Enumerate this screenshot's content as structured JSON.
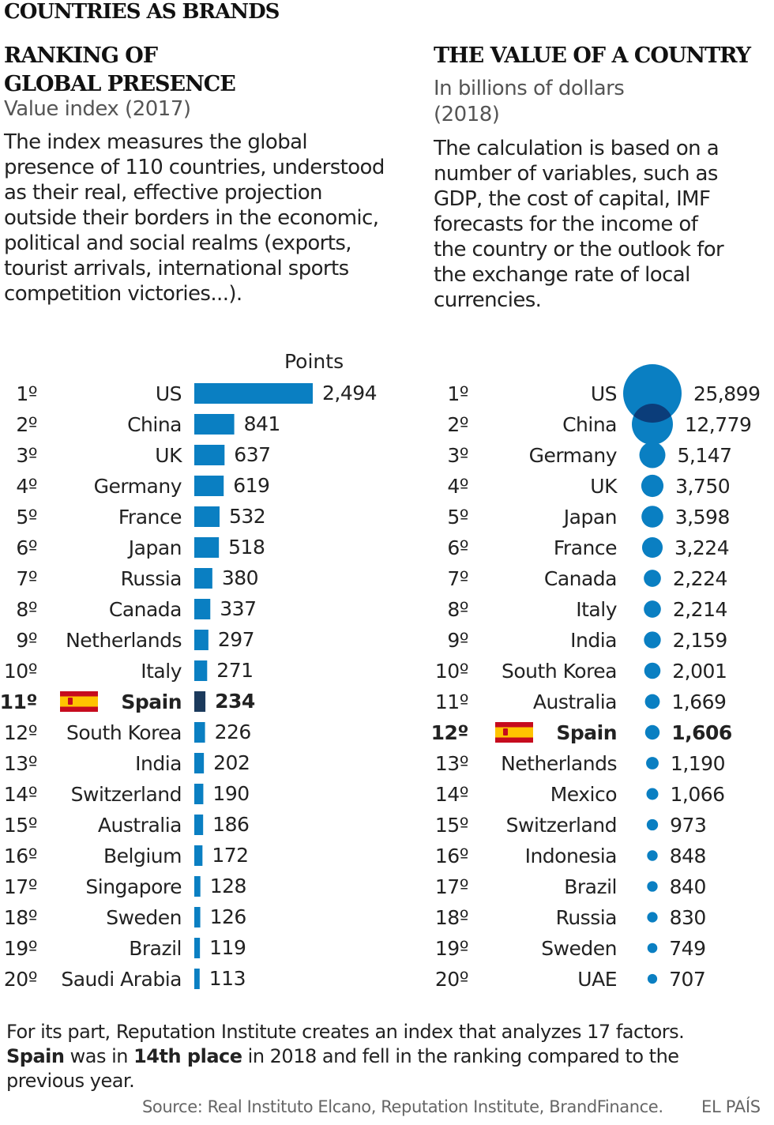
{
  "header": {
    "title": "COUNTRIES AS BRANDS"
  },
  "left": {
    "title_lines": [
      "RANKING OF",
      "GLOBAL PRESENCE"
    ],
    "subtitle": "Value index (2017)",
    "description_lines": [
      "The index measures the global",
      "presence of 110 countries, understood",
      "as their real, effective projection",
      "outside their borders in the economic,",
      "political and social realms (exports,",
      "tourist arrivals, international sports",
      "competition victories...)."
    ],
    "points_label": "Points"
  },
  "right": {
    "title": "THE VALUE OF A COUNTRY",
    "subtitle_lines": [
      "In billions of dollars",
      "(2018)"
    ],
    "description_lines": [
      "The calculation is based on a",
      "number of variables, such as",
      "GDP, the cost of capital, IMF",
      "forecasts for the income of",
      "the country or the outlook for",
      "the exchange rate of local",
      "currencies."
    ]
  },
  "footer": {
    "note_line1": "For its part, Reputation Institute creates an index that analyzes 17 factors.",
    "note_line2_bold1": "Spain",
    "note_line2_text1": " was in ",
    "note_line2_bold2": "14th place",
    "note_line2_text2": " in 2018 and fell in the ranking compared to the",
    "note_line3": "previous year.",
    "source": "Source: Real Instituto Elcano, Reputation Institute, BrandFinance.",
    "brand": "EL PAÍS"
  },
  "colors": {
    "bar": "#0a7fc2",
    "highlight": "#1b3a5c",
    "bubble": "#0a7fc2",
    "bubble_overlap": "#0b3d7a",
    "flag_red": "#c60b1e",
    "flag_yellow": "#ffc400"
  },
  "chart_data": [
    {
      "type": "bar",
      "orientation": "horizontal",
      "title": "RANKING OF GLOBAL PRESENCE",
      "subtitle": "Value index (2017)",
      "value_label": "Points",
      "ranks": [
        "1º",
        "2º",
        "3º",
        "4º",
        "5º",
        "6º",
        "7º",
        "8º",
        "9º",
        "10º",
        "11º",
        "12º",
        "13º",
        "14º",
        "15º",
        "16º",
        "17º",
        "18º",
        "19º",
        "20º"
      ],
      "categories": [
        "US",
        "China",
        "UK",
        "Germany",
        "France",
        "Japan",
        "Russia",
        "Canada",
        "Netherlands",
        "Italy",
        "Spain",
        "South Korea",
        "India",
        "Switzerland",
        "Australia",
        "Belgium",
        "Singapore",
        "Sweden",
        "Brazil",
        "Saudi Arabia"
      ],
      "values": [
        2494,
        841,
        637,
        619,
        532,
        518,
        380,
        337,
        297,
        271,
        234,
        226,
        202,
        190,
        186,
        172,
        128,
        126,
        119,
        113
      ],
      "value_labels": [
        "2,494",
        "841",
        "637",
        "619",
        "532",
        "518",
        "380",
        "337",
        "297",
        "271",
        "234",
        "226",
        "202",
        "190",
        "186",
        "172",
        "128",
        "126",
        "119",
        "113"
      ],
      "highlight": "Spain"
    },
    {
      "type": "scatter",
      "encoding": "bubble-area",
      "title": "THE VALUE OF A COUNTRY",
      "subtitle": "In billions of dollars (2018)",
      "ranks": [
        "1º",
        "2º",
        "3º",
        "4º",
        "5º",
        "6º",
        "7º",
        "8º",
        "9º",
        "10º",
        "11º",
        "12º",
        "13º",
        "14º",
        "15º",
        "16º",
        "17º",
        "18º",
        "19º",
        "20º"
      ],
      "categories": [
        "US",
        "China",
        "Germany",
        "UK",
        "Japan",
        "France",
        "Canada",
        "Italy",
        "India",
        "South Korea",
        "Australia",
        "Spain",
        "Netherlands",
        "Mexico",
        "Switzerland",
        "Indonesia",
        "Brazil",
        "Russia",
        "Sweden",
        "UAE"
      ],
      "values": [
        25899,
        12779,
        5147,
        3750,
        3598,
        3224,
        2224,
        2214,
        2159,
        2001,
        1669,
        1606,
        1190,
        1066,
        973,
        848,
        840,
        830,
        749,
        707
      ],
      "value_labels": [
        "25,899",
        "12,779",
        "5,147",
        "3,750",
        "3,598",
        "3,224",
        "2,224",
        "2,214",
        "2,159",
        "2,001",
        "1,669",
        "1,606",
        "1,190",
        "1,066",
        "973",
        "848",
        "840",
        "830",
        "749",
        "707"
      ],
      "highlight": "Spain"
    }
  ]
}
